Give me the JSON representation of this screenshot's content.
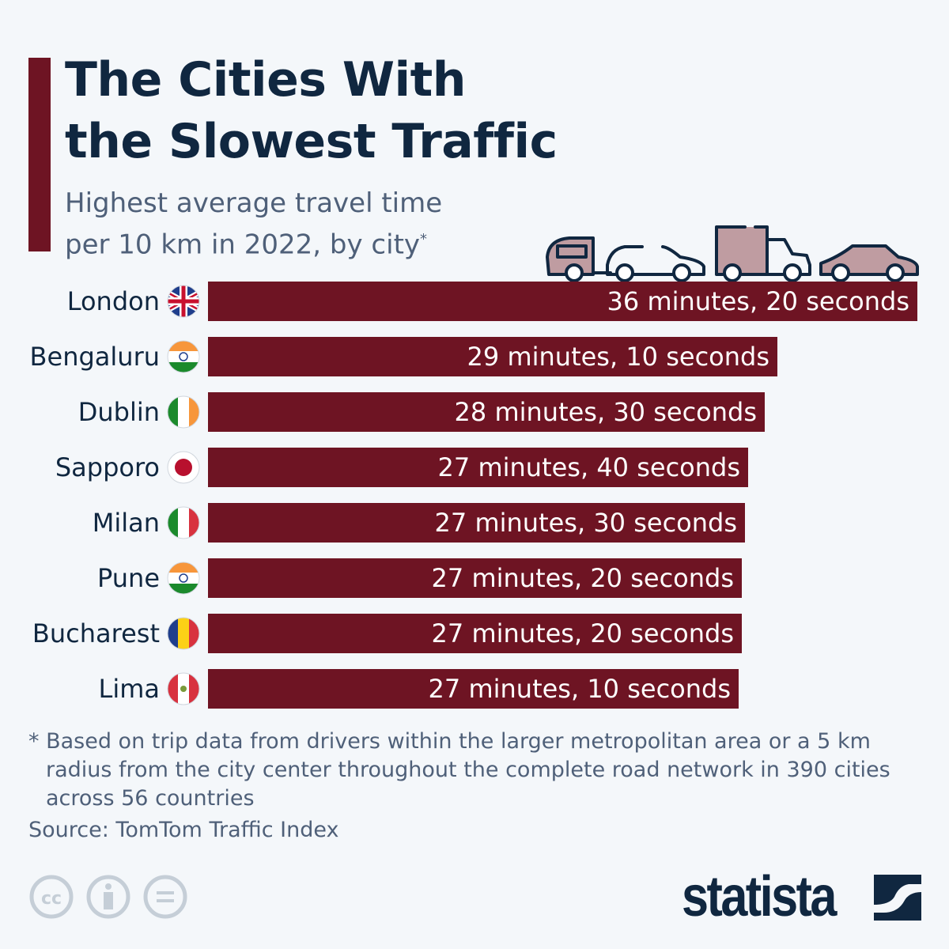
{
  "header": {
    "title_line1": "The Cities With",
    "title_line2": "the Slowest Traffic",
    "subtitle_line1": "Highest average travel time",
    "subtitle_line2": "per 10 km in 2022, by city",
    "subtitle_mark": "*"
  },
  "chart_data": {
    "type": "bar",
    "orientation": "horizontal",
    "title": "The Cities With the Slowest Traffic",
    "ylabel": "Highest average travel time per 10 km in 2022 (minutes)",
    "categories": [
      "London",
      "Bengaluru",
      "Dublin",
      "Sapporo",
      "Milan",
      "Pune",
      "Bucharest",
      "Lima"
    ],
    "flags": [
      "uk",
      "india",
      "ireland",
      "japan",
      "italy",
      "india",
      "romania",
      "peru"
    ],
    "values": [
      36.333,
      29.167,
      28.5,
      27.667,
      27.5,
      27.333,
      27.333,
      27.167
    ],
    "labels": [
      "36 minutes, 20 seconds",
      "29 minutes, 10 seconds",
      "28 minutes, 30 seconds",
      "27 minutes, 40 seconds",
      "27 minutes, 30 seconds",
      "27 minutes, 20 seconds",
      "27 minutes, 20 seconds",
      "27 minutes, 10 seconds"
    ],
    "xlim": [
      0,
      36.333
    ],
    "grid": false,
    "bar_color": "#6e1423"
  },
  "footer": {
    "note_line1": "* Based on trip data from drivers within the larger metropolitan area or a 5 km",
    "note_line2": "radius from the city center throughout the complete road network in 390 cities",
    "note_line3": "across 56 countries",
    "source": "Source: TomTom Traffic Index",
    "logo": "statista"
  }
}
